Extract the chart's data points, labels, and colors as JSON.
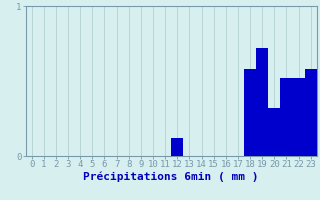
{
  "categories": [
    0,
    1,
    2,
    3,
    4,
    5,
    6,
    7,
    8,
    9,
    10,
    11,
    12,
    13,
    14,
    15,
    16,
    17,
    18,
    19,
    20,
    21,
    22,
    23
  ],
  "values": [
    0,
    0,
    0,
    0,
    0,
    0,
    0,
    0,
    0,
    0,
    0,
    0,
    0.12,
    0,
    0,
    0,
    0,
    0,
    0.58,
    0.72,
    0.32,
    0.52,
    0.52,
    0.58
  ],
  "bar_color": "#0000cc",
  "background_color": "#d8efef",
  "grid_color": "#b8d4d4",
  "axis_color": "#7799aa",
  "text_color": "#0000bb",
  "xlabel": "Précipitations 6min ( mm )",
  "ylim": [
    0,
    1.0
  ],
  "yticks": [
    0,
    1
  ],
  "xticks": [
    0,
    1,
    2,
    3,
    4,
    5,
    6,
    7,
    8,
    9,
    10,
    11,
    12,
    13,
    14,
    15,
    16,
    17,
    18,
    19,
    20,
    21,
    22,
    23
  ],
  "tick_fontsize": 6.5,
  "label_fontsize": 8
}
